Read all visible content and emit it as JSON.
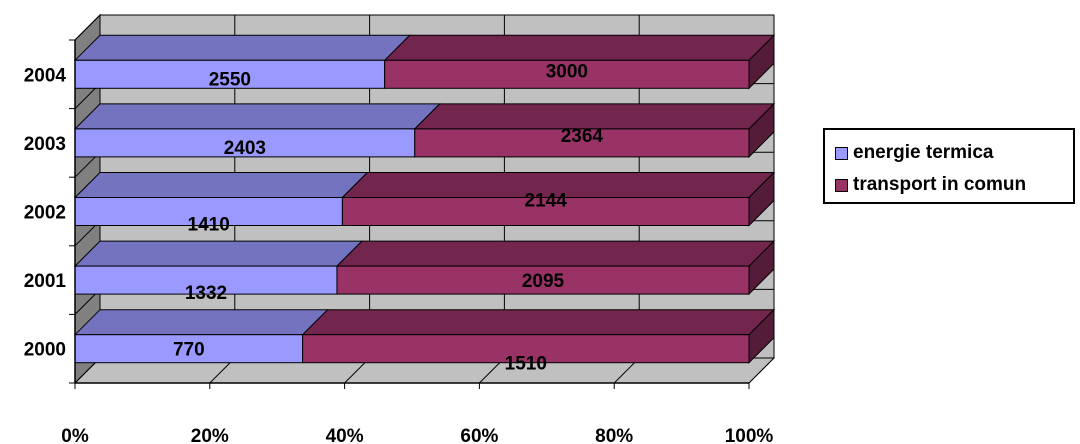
{
  "chart_data": {
    "type": "bar",
    "orientation": "horizontal",
    "stacking": "percent",
    "three_d": true,
    "categories": [
      "2000",
      "2001",
      "2002",
      "2003",
      "2004"
    ],
    "series": [
      {
        "name": "energie termica",
        "values": [
          770,
          1332,
          1410,
          2403,
          2550
        ],
        "color": "#9999ff",
        "label_color": "#000000"
      },
      {
        "name": "transport in comun",
        "values": [
          1510,
          2095,
          2144,
          2364,
          3000
        ],
        "color": "#993366",
        "label_color": "#000000"
      }
    ],
    "x_ticks": [
      "0%",
      "20%",
      "40%",
      "60%",
      "80%",
      "100%"
    ],
    "xlim": [
      0,
      100
    ],
    "grid": true,
    "legend": "right",
    "wall_color": "#c0c0c0"
  },
  "legend": {
    "items": [
      {
        "label": "energie termica",
        "color": "#9999ff"
      },
      {
        "label": "transport in comun",
        "color": "#993366"
      }
    ]
  }
}
